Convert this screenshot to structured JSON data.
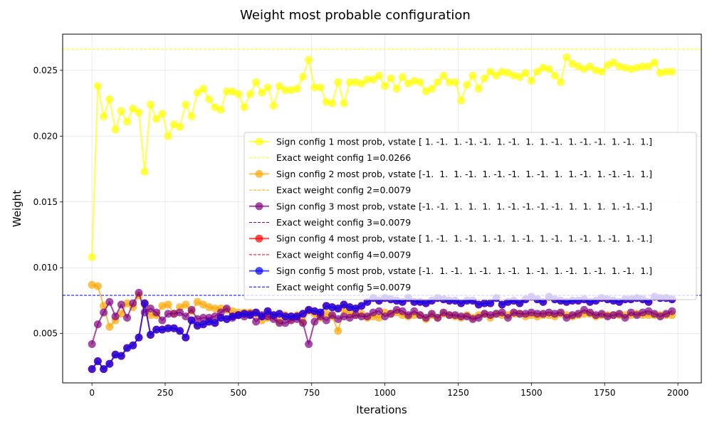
{
  "chart_data": {
    "type": "line",
    "title": "Weight most probable configuration",
    "xlabel": "Iterations",
    "ylabel": "Weight",
    "xlim": [
      -100,
      2080
    ],
    "ylim": [
      0.00125,
      0.02775
    ],
    "xticks": [
      0,
      250,
      500,
      750,
      1000,
      1250,
      1500,
      1750,
      2000
    ],
    "xtick_labels": [
      "0",
      "250",
      "500",
      "750",
      "1000",
      "1250",
      "1500",
      "1750",
      "2000"
    ],
    "yticks": [
      0.005,
      0.01,
      0.015,
      0.02,
      0.025
    ],
    "ytick_labels": [
      "0.005",
      "0.010",
      "0.015",
      "0.020",
      "0.025"
    ],
    "grid": true,
    "legend_position": "center-right",
    "x": [
      0,
      20,
      40,
      60,
      80,
      100,
      120,
      140,
      160,
      180,
      200,
      220,
      240,
      260,
      280,
      300,
      320,
      340,
      360,
      380,
      400,
      420,
      440,
      460,
      480,
      500,
      520,
      540,
      560,
      580,
      600,
      620,
      640,
      660,
      680,
      700,
      720,
      740,
      760,
      780,
      800,
      820,
      840,
      860,
      880,
      900,
      920,
      940,
      960,
      980,
      1000,
      1020,
      1040,
      1060,
      1080,
      1100,
      1120,
      1140,
      1160,
      1180,
      1200,
      1220,
      1240,
      1260,
      1280,
      1300,
      1320,
      1340,
      1360,
      1380,
      1400,
      1420,
      1440,
      1460,
      1480,
      1500,
      1520,
      1540,
      1560,
      1580,
      1600,
      1620,
      1640,
      1660,
      1680,
      1700,
      1720,
      1740,
      1760,
      1780,
      1800,
      1820,
      1840,
      1860,
      1880,
      1900,
      1920,
      1940,
      1960,
      1980
    ],
    "series": [
      {
        "name": "Sign config 1 most prob, vstate [ 1. -1.  1. -1. -1.  1. -1.  1.  1. -1.  1. -1. -1.  1. -1.  1.]",
        "color": "#ffff00",
        "values": [
          0.0108,
          0.0238,
          0.0215,
          0.0228,
          0.0205,
          0.0219,
          0.0211,
          0.0221,
          0.0218,
          0.0173,
          0.0224,
          0.0213,
          0.0217,
          0.02,
          0.0209,
          0.0207,
          0.0224,
          0.0215,
          0.0233,
          0.0236,
          0.0228,
          0.0222,
          0.022,
          0.0234,
          0.0234,
          0.0232,
          0.0222,
          0.0232,
          0.0241,
          0.0233,
          0.0237,
          0.0223,
          0.0238,
          0.0235,
          0.0235,
          0.0236,
          0.0245,
          0.0258,
          0.0237,
          0.0237,
          0.0226,
          0.0225,
          0.0241,
          0.0225,
          0.0241,
          0.0241,
          0.024,
          0.0243,
          0.0243,
          0.0246,
          0.0238,
          0.0244,
          0.0236,
          0.0245,
          0.024,
          0.0242,
          0.0241,
          0.0234,
          0.0236,
          0.0241,
          0.0246,
          0.0241,
          0.0241,
          0.0227,
          0.0239,
          0.0246,
          0.0236,
          0.0244,
          0.0249,
          0.0246,
          0.0249,
          0.0248,
          0.0246,
          0.0245,
          0.0248,
          0.0242,
          0.0249,
          0.0252,
          0.0251,
          0.0246,
          0.0241,
          0.026,
          0.0255,
          0.0253,
          0.0251,
          0.0253,
          0.025,
          0.0249,
          0.0254,
          0.0256,
          0.0253,
          0.0252,
          0.0251,
          0.0252,
          0.0253,
          0.0253,
          0.0256,
          0.0248,
          0.0249,
          0.0249
        ]
      },
      {
        "name": "Sign config 2 most prob, vstate [-1.  1.  1. -1.  1. -1. -1.  1. -1.  1.  1. -1.  1. -1. -1.  1.]",
        "color": "#ffa500",
        "values": [
          0.0087,
          0.0086,
          0.0071,
          0.0055,
          0.006,
          0.0065,
          0.0073,
          0.007,
          0.0079,
          0.0072,
          0.0064,
          0.0064,
          0.0071,
          0.0072,
          0.0065,
          0.007,
          0.0072,
          0.0067,
          0.0074,
          0.0072,
          0.007,
          0.0069,
          0.0069,
          0.0068,
          0.0067,
          0.0066,
          0.0066,
          0.0066,
          0.0065,
          0.006,
          0.0062,
          0.0063,
          0.0059,
          0.0064,
          0.0061,
          0.0064,
          0.0059,
          0.0067,
          0.0065,
          0.0062,
          0.0065,
          0.0063,
          0.0052,
          0.0068,
          0.0065,
          0.0064,
          0.0065,
          0.0062,
          0.0063,
          0.0062,
          0.0066,
          0.0065,
          0.0066,
          0.0064,
          0.0063,
          0.0064,
          0.0064,
          0.0061,
          0.0064,
          0.0062,
          0.0065,
          0.0064,
          0.0063,
          0.0062,
          0.0064,
          0.0062,
          0.0064,
          0.0065,
          0.0062,
          0.0065,
          0.0064,
          0.0064,
          0.0065,
          0.0065,
          0.0063,
          0.0064,
          0.0063,
          0.0064,
          0.0064,
          0.0063,
          0.0065,
          0.0064,
          0.0063,
          0.0064,
          0.0065,
          0.0065,
          0.0063,
          0.0064,
          0.0064,
          0.0064,
          0.0064,
          0.0064,
          0.0064,
          0.0065,
          0.0064,
          0.0064,
          0.0064,
          0.0064,
          0.0064,
          0.0064
        ]
      },
      {
        "name": "Sign config 3 most prob, vstate [-1. -1.  1.  1.  1.  1. -1. -1. -1. -1.  1.  1.  1.  1. -1. -1.]",
        "color": "#800080",
        "values": [
          0.0042,
          0.0057,
          0.0066,
          0.0074,
          0.0063,
          0.0072,
          0.0062,
          0.0073,
          0.0081,
          0.0066,
          0.0069,
          0.0066,
          0.006,
          0.0065,
          0.0065,
          0.0066,
          0.0063,
          0.0068,
          0.0061,
          0.0062,
          0.0062,
          0.0063,
          0.0066,
          0.0069,
          0.0062,
          0.0064,
          0.0063,
          0.0065,
          0.0059,
          0.0064,
          0.0063,
          0.0061,
          0.0058,
          0.0058,
          0.006,
          0.0061,
          0.0058,
          0.0042,
          0.0059,
          0.0063,
          0.006,
          0.0064,
          0.0061,
          0.0063,
          0.0062,
          0.0064,
          0.0063,
          0.0063,
          0.0066,
          0.0067,
          0.0063,
          0.0065,
          0.0068,
          0.0067,
          0.0064,
          0.0067,
          0.0064,
          0.0062,
          0.0065,
          0.0062,
          0.0066,
          0.0064,
          0.0064,
          0.0063,
          0.0063,
          0.0061,
          0.0062,
          0.0065,
          0.0064,
          0.0065,
          0.0066,
          0.0062,
          0.0066,
          0.0065,
          0.0065,
          0.0066,
          0.0065,
          0.0065,
          0.0066,
          0.0065,
          0.0066,
          0.0062,
          0.0064,
          0.0065,
          0.0068,
          0.0066,
          0.0064,
          0.0065,
          0.0063,
          0.0064,
          0.0065,
          0.0062,
          0.0066,
          0.0064,
          0.0066,
          0.0067,
          0.0065,
          0.0063,
          0.0065,
          0.0067
        ]
      },
      {
        "name": "Sign config 4 most prob, vstate [ 1. -1.  1. -1.  1. -1.  1. -1.  1. -1.  1. -1.  1. -1.  1. -1.]",
        "color": "#ff0000",
        "values": [
          0.0023,
          0.0029,
          0.0023,
          0.0027,
          0.0034,
          0.0033,
          0.0039,
          0.0041,
          0.0047,
          0.0073,
          0.0049,
          0.0053,
          0.0053,
          0.0054,
          0.0054,
          0.0052,
          0.0047,
          0.006,
          0.0056,
          0.0057,
          0.0059,
          0.0058,
          0.0062,
          0.0061,
          0.0063,
          0.0064,
          0.0065,
          0.0064,
          0.0066,
          0.0063,
          0.0067,
          0.0064,
          0.0065,
          0.0063,
          0.0063,
          0.0063,
          0.0065,
          0.0068,
          0.0067,
          0.0066,
          0.0071,
          0.007,
          0.0069,
          0.0072,
          0.007,
          0.0069,
          0.0071,
          0.0074,
          0.0077,
          0.0075,
          0.0077,
          0.0076,
          0.0075,
          0.0074,
          0.0077,
          0.0074,
          0.0074,
          0.0073,
          0.0075,
          0.0077,
          0.0076,
          0.0075,
          0.0075,
          0.0073,
          0.0075,
          0.0075,
          0.0072,
          0.0073,
          0.0073,
          0.0077,
          0.0072,
          0.0074,
          0.0075,
          0.0073,
          0.0076,
          0.0078,
          0.0076,
          0.0074,
          0.0078,
          0.0076,
          0.0075,
          0.0074,
          0.0075,
          0.0075,
          0.0076,
          0.0074,
          0.0075,
          0.0077,
          0.0076,
          0.0075,
          0.0074,
          0.0076,
          0.0076,
          0.0077,
          0.0076,
          0.0074,
          0.0078,
          0.0077,
          0.0077,
          0.0076
        ]
      },
      {
        "name": "Sign config 5 most prob, vstate [-1.  1. -1.  1. -1.  1. -1.  1. -1.  1. -1.  1. -1.  1. -1.  1.]",
        "color": "#0000ff",
        "values": [
          0.0023,
          0.0029,
          0.0023,
          0.0027,
          0.0034,
          0.0033,
          0.0039,
          0.0041,
          0.0047,
          0.0073,
          0.0049,
          0.0053,
          0.0053,
          0.0054,
          0.0054,
          0.0052,
          0.0047,
          0.006,
          0.0056,
          0.0057,
          0.0059,
          0.0058,
          0.0062,
          0.0061,
          0.0063,
          0.0064,
          0.0065,
          0.0064,
          0.0066,
          0.0063,
          0.0067,
          0.0064,
          0.0065,
          0.0063,
          0.0063,
          0.0063,
          0.0065,
          0.0068,
          0.0067,
          0.0066,
          0.0071,
          0.007,
          0.0069,
          0.0072,
          0.007,
          0.0069,
          0.0071,
          0.0074,
          0.0077,
          0.0075,
          0.0077,
          0.0076,
          0.0075,
          0.0074,
          0.0077,
          0.0074,
          0.0074,
          0.0073,
          0.0075,
          0.0077,
          0.0076,
          0.0075,
          0.0075,
          0.0073,
          0.0075,
          0.0075,
          0.0072,
          0.0073,
          0.0073,
          0.0077,
          0.0072,
          0.0074,
          0.0075,
          0.0073,
          0.0076,
          0.0078,
          0.0076,
          0.0074,
          0.0078,
          0.0076,
          0.0075,
          0.0074,
          0.0075,
          0.0075,
          0.0076,
          0.0074,
          0.0075,
          0.0077,
          0.0076,
          0.0075,
          0.0074,
          0.0076,
          0.0076,
          0.0077,
          0.0076,
          0.0074,
          0.0078,
          0.0077,
          0.0077,
          0.0076
        ]
      }
    ],
    "reference_lines": [
      {
        "name": "Exact weight config 1=0.0266",
        "value": 0.0266,
        "color": "#ffff00"
      },
      {
        "name": "Exact weight config 2=0.0079",
        "value": 0.0079,
        "color": "#ffa500"
      },
      {
        "name": "Exact weight config 3=0.0079",
        "value": 0.0079,
        "color": "#800080"
      },
      {
        "name": "Exact weight config 4=0.0079",
        "value": 0.0079,
        "color": "#ff0000"
      },
      {
        "name": "Exact weight config 5=0.0079",
        "value": 0.0079,
        "color": "#0000ff"
      }
    ]
  }
}
